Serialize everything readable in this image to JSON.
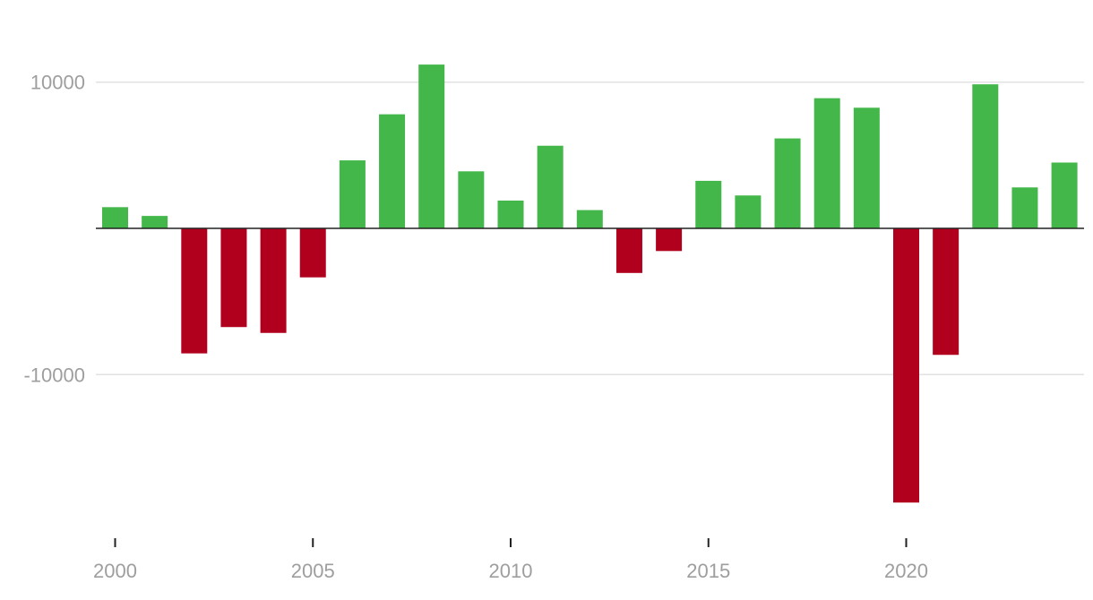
{
  "chart_data": {
    "type": "bar",
    "title": "",
    "xlabel": "",
    "ylabel": "",
    "x": [
      2000,
      2001,
      2002,
      2003,
      2004,
      2005,
      2006,
      2007,
      2008,
      2009,
      2010,
      2011,
      2012,
      2013,
      2014,
      2015,
      2016,
      2017,
      2018,
      2019,
      2020,
      2021,
      2022,
      2023,
      2024
    ],
    "values": [
      1450,
      850,
      -8550,
      -6750,
      -7150,
      -3350,
      4650,
      7800,
      11200,
      3900,
      1900,
      5650,
      1250,
      -3050,
      -1550,
      3250,
      2250,
      6150,
      8900,
      8250,
      -18750,
      -8650,
      9850,
      2800,
      4500
    ],
    "ylim": [
      -20500,
      14000
    ],
    "y_ticks": [
      10000,
      -10000
    ],
    "y_tick_labels": [
      "10000",
      "-10000"
    ],
    "x_ticks": [
      2000,
      2005,
      2010,
      2015,
      2020
    ],
    "x_tick_labels": [
      "2000",
      "2005",
      "2010",
      "2015",
      "2020"
    ],
    "grid": "horizontal",
    "colors": {
      "positive": "#43b74a",
      "negative": "#b0001e",
      "grid": "#e2e2e2",
      "zero_line": "#222222",
      "tick_text": "#9e9e9e"
    }
  }
}
